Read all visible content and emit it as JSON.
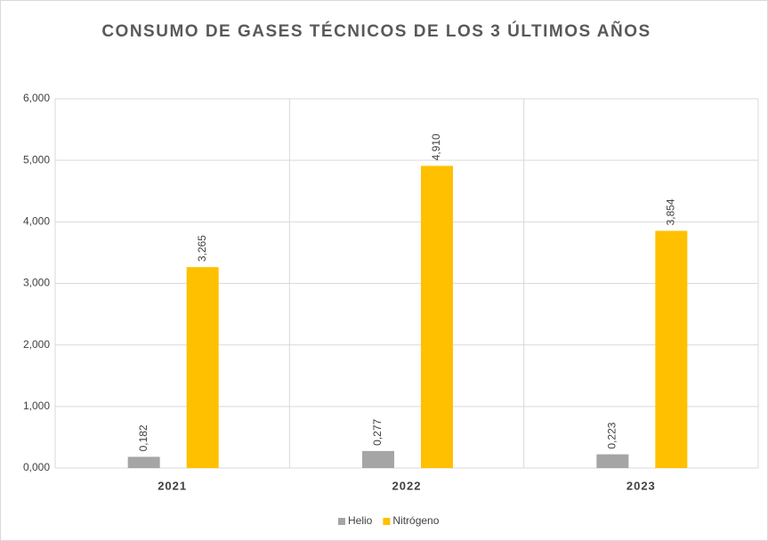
{
  "chart_data": {
    "type": "bar",
    "title": "CONSUMO DE GASES TÉCNICOS DE LOS 3 ÚLTIMOS AÑOS",
    "categories": [
      "2021",
      "2022",
      "2023"
    ],
    "series": [
      {
        "name": "Helio",
        "color": "#a5a5a5",
        "values": [
          0.182,
          0.277,
          0.223
        ],
        "value_labels": [
          "0,182",
          "0,277",
          "0,223"
        ]
      },
      {
        "name": "Nitrógeno",
        "color": "#ffc000",
        "values": [
          3.265,
          4.91,
          3.854
        ],
        "value_labels": [
          "3,265",
          "4,910",
          "3,854"
        ]
      }
    ],
    "ylim": [
      0,
      6
    ],
    "yticks": [
      {
        "value": 0,
        "label": "0,000"
      },
      {
        "value": 1,
        "label": "1,000"
      },
      {
        "value": 2,
        "label": "2,000"
      },
      {
        "value": 3,
        "label": "3,000"
      },
      {
        "value": 4,
        "label": "4,000"
      },
      {
        "value": 5,
        "label": "5,000"
      },
      {
        "value": 6,
        "label": "6,000"
      }
    ],
    "grid": true,
    "legend": "bottom"
  }
}
